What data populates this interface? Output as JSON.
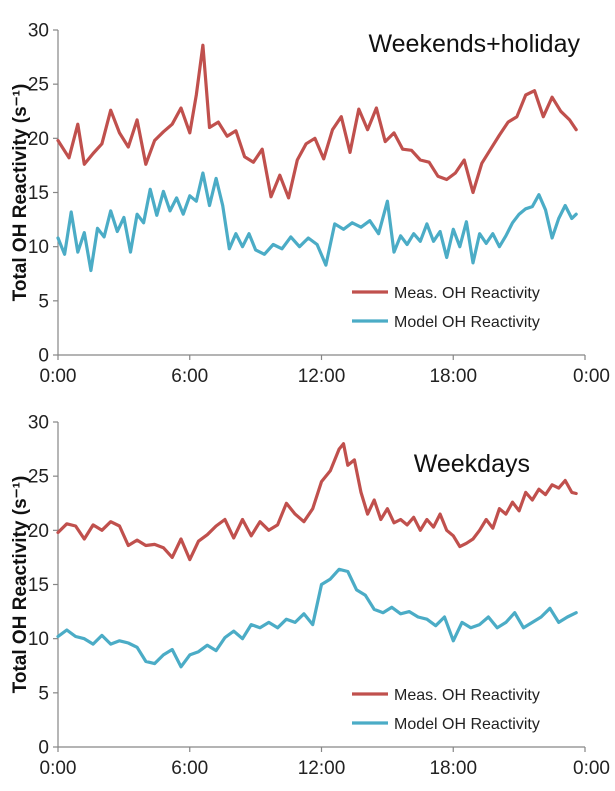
{
  "chart_data": [
    {
      "type": "line",
      "title": "Weekends+holiday",
      "ylabel": "Total OH Reactivity (s⁻¹)",
      "ylim": [
        0,
        30
      ],
      "yticks": [
        "0",
        "5",
        "10",
        "15",
        "20",
        "25",
        "30"
      ],
      "xlim": [
        0,
        24
      ],
      "xticks": [
        "0:00",
        "6:00",
        "12:00",
        "18:00",
        "0:00"
      ],
      "legend_position": "bottom-right",
      "series": [
        {
          "name": "Meas. OH Reactivity",
          "color": "#c0504d",
          "x": [
            0,
            0.5,
            0.9,
            1.2,
            1.6,
            2.0,
            2.4,
            2.8,
            3.2,
            3.6,
            4.0,
            4.4,
            4.8,
            5.2,
            5.6,
            6.0,
            6.3,
            6.6,
            6.9,
            7.3,
            7.7,
            8.1,
            8.5,
            8.9,
            9.3,
            9.7,
            10.1,
            10.5,
            10.9,
            11.3,
            11.7,
            12.1,
            12.5,
            12.9,
            13.3,
            13.7,
            14.1,
            14.5,
            14.9,
            15.3,
            15.7,
            16.1,
            16.5,
            16.9,
            17.3,
            17.7,
            18.1,
            18.5,
            18.9,
            19.3,
            19.7,
            20.1,
            20.5,
            20.9,
            21.3,
            21.7,
            22.1,
            22.5,
            22.9,
            23.3,
            23.6
          ],
          "y": [
            19.8,
            18.2,
            21.3,
            17.6,
            18.6,
            19.5,
            22.6,
            20.5,
            19.2,
            21.7,
            17.6,
            19.8,
            20.6,
            21.3,
            22.8,
            20.5,
            24.0,
            28.6,
            21.0,
            21.5,
            20.2,
            20.7,
            18.3,
            17.8,
            19.0,
            14.6,
            16.6,
            14.5,
            18.0,
            19.5,
            20.0,
            18.1,
            20.8,
            22.0,
            18.7,
            22.7,
            20.8,
            22.8,
            19.7,
            20.5,
            19.0,
            18.9,
            18.0,
            17.8,
            16.5,
            16.2,
            16.8,
            18.0,
            15.0,
            17.7,
            19.0,
            20.3,
            21.5,
            22.0,
            24.0,
            24.4,
            22.0,
            23.8,
            22.5,
            21.7,
            20.8
          ]
        },
        {
          "name": "Model OH Reactivity",
          "color": "#4bacc6",
          "x": [
            0,
            0.3,
            0.6,
            0.9,
            1.2,
            1.5,
            1.8,
            2.1,
            2.4,
            2.7,
            3.0,
            3.3,
            3.6,
            3.9,
            4.2,
            4.5,
            4.8,
            5.1,
            5.4,
            5.7,
            6.0,
            6.3,
            6.6,
            6.9,
            7.2,
            7.5,
            7.8,
            8.1,
            8.4,
            8.7,
            9.0,
            9.4,
            9.8,
            10.2,
            10.6,
            11.0,
            11.4,
            11.8,
            12.2,
            12.6,
            13.0,
            13.4,
            13.8,
            14.2,
            14.6,
            15.0,
            15.3,
            15.6,
            15.9,
            16.2,
            16.5,
            16.8,
            17.1,
            17.4,
            17.7,
            18.0,
            18.3,
            18.6,
            18.9,
            19.2,
            19.5,
            19.8,
            20.1,
            20.4,
            20.7,
            21.0,
            21.3,
            21.6,
            21.9,
            22.2,
            22.5,
            22.8,
            23.1,
            23.4,
            23.6
          ],
          "y": [
            10.8,
            9.3,
            13.2,
            9.5,
            11.3,
            7.8,
            11.7,
            10.9,
            13.3,
            11.4,
            12.7,
            9.5,
            13.0,
            12.2,
            15.3,
            12.9,
            15.1,
            13.3,
            14.5,
            13.0,
            14.7,
            14.2,
            16.8,
            13.8,
            16.3,
            13.8,
            9.8,
            11.2,
            10.0,
            11.2,
            9.7,
            9.3,
            10.2,
            9.8,
            10.9,
            10.0,
            10.8,
            10.2,
            8.3,
            12.1,
            11.6,
            12.2,
            11.8,
            12.4,
            11.2,
            14.2,
            9.5,
            11.0,
            10.2,
            11.2,
            10.5,
            12.1,
            10.5,
            11.4,
            9.0,
            11.6,
            10.0,
            12.3,
            8.5,
            11.2,
            10.3,
            11.2,
            10.0,
            11.0,
            12.2,
            13.0,
            13.5,
            13.7,
            14.8,
            13.4,
            10.8,
            12.6,
            13.8,
            12.6,
            13.0
          ]
        }
      ]
    },
    {
      "type": "line",
      "title": "Weekdays",
      "ylabel": "Total OH Reactivity (s⁻¹)",
      "ylim": [
        0,
        30
      ],
      "yticks": [
        "0",
        "5",
        "10",
        "15",
        "20",
        "25",
        "30"
      ],
      "xlim": [
        0,
        24
      ],
      "xticks": [
        "0:00",
        "6:00",
        "12:00",
        "18:00",
        "0:00"
      ],
      "legend_position": "bottom-right",
      "series": [
        {
          "name": "Meas. OH Reactivity",
          "color": "#c0504d",
          "x": [
            0,
            0.4,
            0.8,
            1.2,
            1.6,
            2.0,
            2.4,
            2.8,
            3.2,
            3.6,
            4.0,
            4.4,
            4.8,
            5.2,
            5.6,
            6.0,
            6.4,
            6.8,
            7.2,
            7.6,
            8.0,
            8.4,
            8.8,
            9.2,
            9.6,
            10.0,
            10.4,
            10.8,
            11.2,
            11.6,
            12.0,
            12.4,
            12.8,
            13.0,
            13.2,
            13.5,
            13.8,
            14.1,
            14.4,
            14.7,
            15.0,
            15.3,
            15.6,
            15.9,
            16.2,
            16.5,
            16.8,
            17.1,
            17.4,
            17.7,
            18.0,
            18.3,
            18.6,
            18.9,
            19.2,
            19.5,
            19.8,
            20.1,
            20.4,
            20.7,
            21.0,
            21.3,
            21.6,
            21.9,
            22.2,
            22.5,
            22.8,
            23.1,
            23.4,
            23.6
          ],
          "y": [
            19.8,
            20.6,
            20.4,
            19.2,
            20.5,
            20.0,
            20.8,
            20.4,
            18.6,
            19.1,
            18.6,
            18.7,
            18.4,
            17.5,
            19.2,
            17.3,
            19.0,
            19.6,
            20.4,
            21.0,
            19.3,
            21.0,
            19.5,
            20.8,
            20.0,
            20.5,
            22.5,
            21.5,
            20.8,
            22.0,
            24.5,
            25.5,
            27.5,
            28.0,
            26.0,
            26.5,
            23.5,
            21.5,
            22.8,
            21.0,
            22.0,
            20.7,
            21.0,
            20.5,
            21.2,
            20.0,
            21.0,
            20.3,
            21.5,
            20.0,
            19.5,
            18.5,
            18.8,
            19.2,
            20.0,
            21.0,
            20.2,
            22.0,
            21.5,
            22.6,
            21.8,
            23.5,
            22.8,
            23.8,
            23.3,
            24.2,
            23.9,
            24.6,
            23.5,
            23.4
          ]
        },
        {
          "name": "Model OH Reactivity",
          "color": "#4bacc6",
          "x": [
            0,
            0.4,
            0.8,
            1.2,
            1.6,
            2.0,
            2.4,
            2.8,
            3.2,
            3.6,
            4.0,
            4.4,
            4.8,
            5.2,
            5.6,
            6.0,
            6.4,
            6.8,
            7.2,
            7.6,
            8.0,
            8.4,
            8.8,
            9.2,
            9.6,
            10.0,
            10.4,
            10.8,
            11.2,
            11.6,
            12.0,
            12.4,
            12.8,
            13.2,
            13.6,
            14.0,
            14.4,
            14.8,
            15.2,
            15.6,
            16.0,
            16.4,
            16.8,
            17.2,
            17.6,
            18.0,
            18.4,
            18.8,
            19.2,
            19.6,
            20.0,
            20.4,
            20.8,
            21.2,
            21.6,
            22.0,
            22.4,
            22.8,
            23.2,
            23.6
          ],
          "y": [
            10.2,
            10.8,
            10.2,
            10.0,
            9.5,
            10.3,
            9.5,
            9.8,
            9.6,
            9.2,
            7.9,
            7.7,
            8.5,
            9.0,
            7.4,
            8.5,
            8.8,
            9.4,
            8.9,
            10.1,
            10.7,
            10.0,
            11.3,
            11.0,
            11.5,
            11.0,
            11.8,
            11.5,
            12.3,
            11.3,
            15.0,
            15.5,
            16.4,
            16.2,
            14.5,
            14.0,
            12.7,
            12.4,
            12.9,
            12.3,
            12.5,
            12.0,
            11.8,
            11.2,
            12.0,
            9.8,
            11.5,
            11.0,
            11.3,
            12.0,
            11.0,
            11.5,
            12.4,
            11.0,
            11.5,
            12.0,
            12.8,
            11.5,
            12.0,
            12.4
          ]
        }
      ]
    }
  ]
}
